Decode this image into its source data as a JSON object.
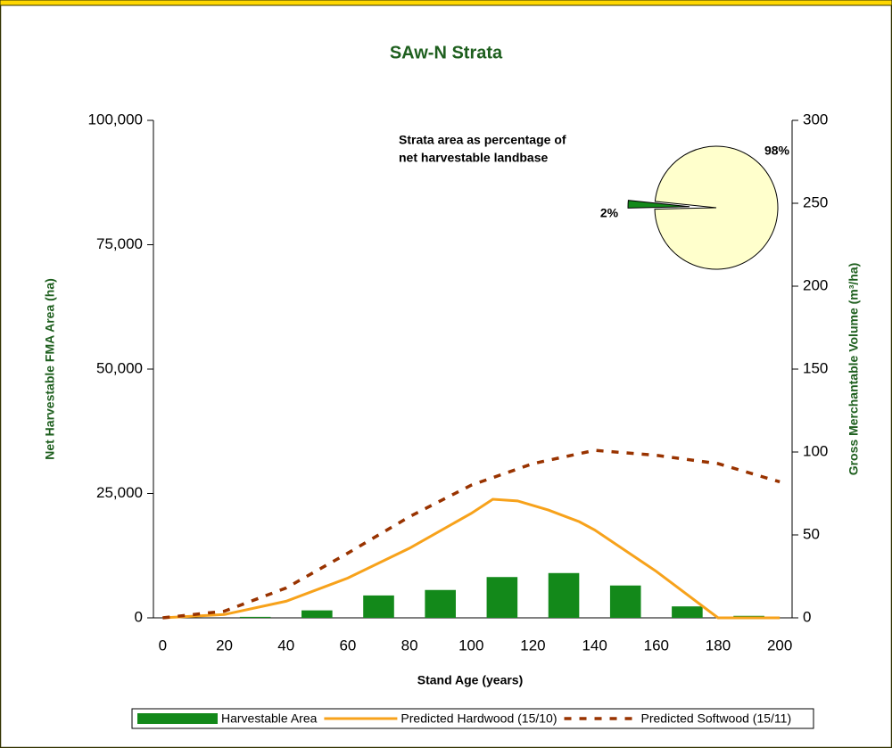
{
  "chart_data": [
    {
      "type": "combo",
      "title": "SAw-N Strata",
      "x_label": "Stand Age (years)",
      "y_label": "Net Harvestable FMA Area (ha)",
      "y2_label": "Gross Merchantable Volume (m³/ha)",
      "xlim": [
        -3,
        204
      ],
      "xticks": [
        0,
        20,
        40,
        60,
        80,
        100,
        120,
        140,
        160,
        180,
        200
      ],
      "ylim": [
        0,
        100000
      ],
      "yticks": [
        0,
        {
          "value": 25000,
          "label": "25,000"
        },
        {
          "value": 50000,
          "label": "50,000"
        },
        {
          "value": 75000,
          "label": "75,000"
        },
        {
          "value": 100000,
          "label": "100,000"
        }
      ],
      "y2lim": [
        0,
        300
      ],
      "y2ticks": [
        0,
        50,
        100,
        150,
        200,
        250,
        300
      ],
      "legend": "bottom",
      "series": [
        {
          "name": "Harvestable Area",
          "type": "bar",
          "color": "#13891a",
          "x": [
            30,
            50,
            70,
            90,
            110,
            130,
            150,
            170,
            190
          ],
          "values": [
            200,
            1500,
            4500,
            5600,
            8200,
            9000,
            6500,
            2300,
            400
          ]
        },
        {
          "name": "Predicted Hardwood (15/10)",
          "type": "line",
          "axis": "y2",
          "color": "#f7a21b",
          "dashed": false,
          "x": [
            0,
            20,
            40,
            60,
            80,
            100,
            107,
            115,
            125,
            135,
            140,
            160,
            180,
            200
          ],
          "values": [
            0,
            2,
            10,
            24,
            42,
            63,
            71.5,
            70.5,
            65,
            58,
            53,
            28,
            0,
            0
          ]
        },
        {
          "name": "Predicted Softwood (15/11)",
          "type": "line",
          "axis": "y2",
          "color": "#993300",
          "dashed": true,
          "x": [
            0,
            20,
            40,
            60,
            80,
            100,
            120,
            140,
            160,
            180,
            200
          ],
          "values": [
            0,
            4,
            18,
            39,
            61,
            80,
            93,
            101,
            98,
            93,
            82
          ]
        }
      ]
    },
    {
      "type": "pie",
      "title_lines": [
        "Strata area as percentage of",
        "net harvestable landbase"
      ],
      "values": [
        98,
        2
      ],
      "value_labels": [
        "98%",
        "2%"
      ],
      "colors": [
        "#ffffcc",
        "#13891a"
      ]
    }
  ]
}
